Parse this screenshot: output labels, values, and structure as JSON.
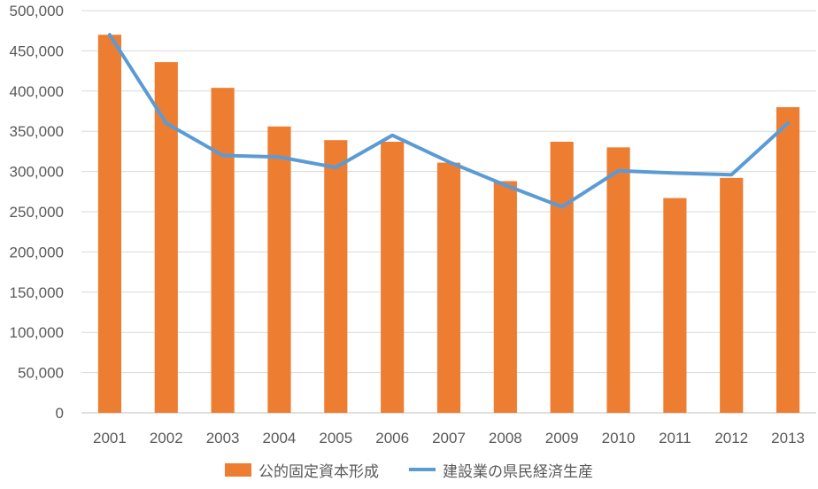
{
  "chart_data": {
    "type": "bar",
    "categories": [
      "2001",
      "2002",
      "2003",
      "2004",
      "2005",
      "2006",
      "2007",
      "2008",
      "2009",
      "2010",
      "2011",
      "2012",
      "2013"
    ],
    "series": [
      {
        "name": "公的固定資本形成",
        "type": "bar",
        "color": "#ED7D31",
        "values": [
          470000,
          436000,
          404000,
          356000,
          339000,
          337000,
          311000,
          288000,
          337000,
          330000,
          267000,
          292000,
          380000
        ]
      },
      {
        "name": "建設業の県民経済生産",
        "type": "line",
        "color": "#5B9BD5",
        "values": [
          470000,
          360000,
          320000,
          318000,
          305000,
          345000,
          312000,
          283000,
          256000,
          301000,
          298000,
          296000,
          360000
        ]
      }
    ],
    "y_ticks": [
      "0",
      "50,000",
      "100,000",
      "150,000",
      "200,000",
      "250,000",
      "300,000",
      "350,000",
      "400,000",
      "450,000",
      "500,000"
    ],
    "ylim": [
      0,
      500000
    ],
    "grid": true,
    "legend_position": "bottom"
  }
}
